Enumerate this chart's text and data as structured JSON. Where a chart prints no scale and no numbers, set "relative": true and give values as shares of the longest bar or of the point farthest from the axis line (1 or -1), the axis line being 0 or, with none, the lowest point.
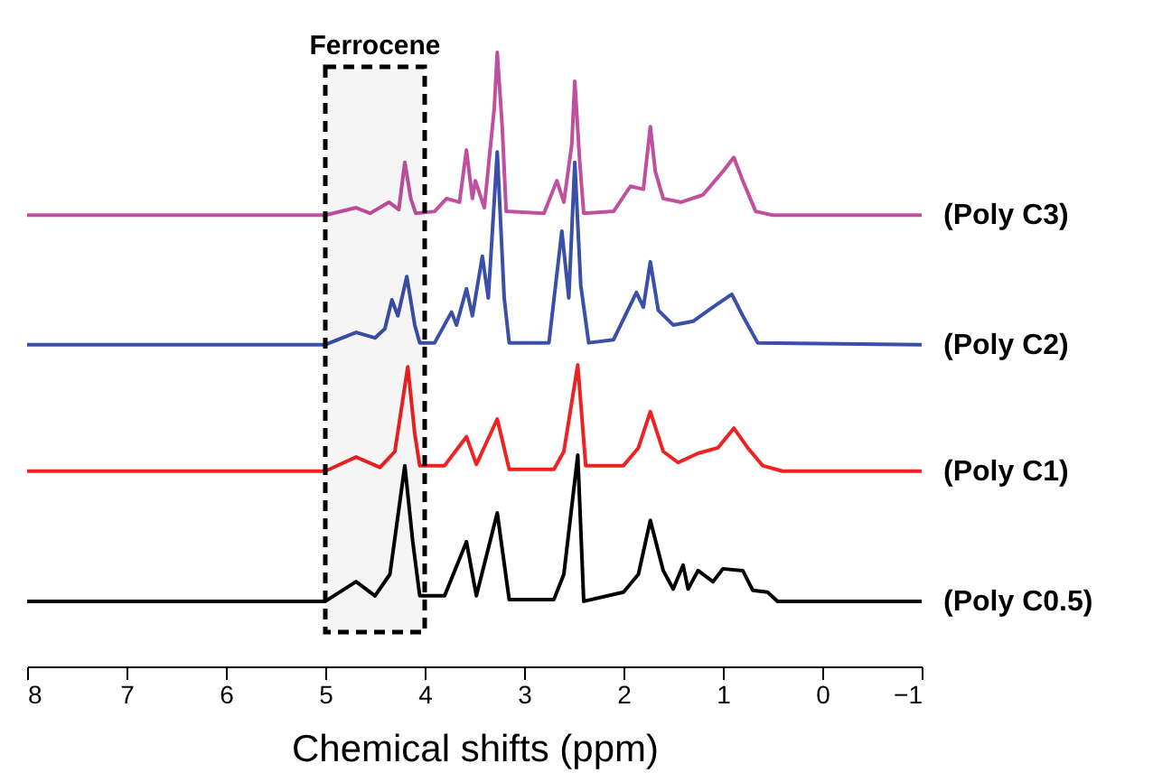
{
  "chart_data": {
    "type": "line",
    "relative": true,
    "xlabel": "Chemical shifts (ppm)",
    "xlim": [
      8,
      -1
    ],
    "xticks": [
      8,
      7,
      6,
      5,
      4,
      3,
      2,
      1,
      0,
      -1
    ],
    "grid": false,
    "line_style": "solid",
    "marker": "none",
    "bands": [
      {
        "axis": "x",
        "from": 5,
        "to": 4,
        "label": "Ferrocene",
        "color": "#000000"
      }
    ],
    "series": [
      {
        "name": "(Poly C3)",
        "color": "#c0509f",
        "x": [
          8,
          5,
          4.69,
          4.55,
          4.36,
          4.26,
          4.2,
          4.14,
          4.09,
          3.9,
          3.78,
          3.65,
          3.58,
          3.52,
          3.49,
          3.4,
          3.3,
          3.27,
          3.22,
          3.18,
          2.8,
          2.67,
          2.6,
          2.52,
          2.49,
          2.44,
          2.4,
          2.1,
          1.93,
          1.8,
          1.73,
          1.68,
          1.6,
          1.42,
          1.2,
          1.0,
          0.89,
          0.8,
          0.67,
          0.5,
          -1
        ],
        "values": [
          0.735,
          0.735,
          0.747,
          0.738,
          0.756,
          0.744,
          0.821,
          0.762,
          0.738,
          0.741,
          0.762,
          0.756,
          0.841,
          0.762,
          0.791,
          0.747,
          0.909,
          1.0,
          0.879,
          0.741,
          0.738,
          0.791,
          0.756,
          0.85,
          0.953,
          0.821,
          0.738,
          0.741,
          0.782,
          0.777,
          0.879,
          0.806,
          0.762,
          0.756,
          0.768,
          0.806,
          0.829,
          0.791,
          0.741,
          0.735,
          0.735
        ]
      },
      {
        "name": "(Poly C2)",
        "color": "#3a4fa8",
        "x": [
          8,
          5,
          4.69,
          4.5,
          4.4,
          4.33,
          4.27,
          4.18,
          4.1,
          4.05,
          3.9,
          3.73,
          3.68,
          3.58,
          3.52,
          3.42,
          3.36,
          3.27,
          3.2,
          3.15,
          2.75,
          2.62,
          2.55,
          2.49,
          2.43,
          2.35,
          2.1,
          1.87,
          1.8,
          1.73,
          1.65,
          1.5,
          1.3,
          1.1,
          0.91,
          0.8,
          0.65,
          -1
        ],
        "values": [
          0.524,
          0.524,
          0.544,
          0.535,
          0.55,
          0.597,
          0.571,
          0.635,
          0.556,
          0.527,
          0.527,
          0.577,
          0.556,
          0.615,
          0.571,
          0.668,
          0.6,
          0.838,
          0.6,
          0.527,
          0.527,
          0.709,
          0.6,
          0.821,
          0.621,
          0.527,
          0.532,
          0.609,
          0.585,
          0.659,
          0.58,
          0.556,
          0.562,
          0.585,
          0.606,
          0.571,
          0.527,
          0.524
        ]
      },
      {
        "name": "(Poly C1)",
        "color": "#ee2222",
        "x": [
          8,
          5,
          4.69,
          4.45,
          4.3,
          4.17,
          4.1,
          4.05,
          3.8,
          3.58,
          3.48,
          3.27,
          3.15,
          2.7,
          2.6,
          2.46,
          2.38,
          2.0,
          1.85,
          1.73,
          1.6,
          1.45,
          1.25,
          1.05,
          0.89,
          0.75,
          0.6,
          0.4,
          -1
        ],
        "values": [
          0.318,
          0.318,
          0.341,
          0.324,
          0.35,
          0.488,
          0.379,
          0.327,
          0.327,
          0.374,
          0.329,
          0.403,
          0.321,
          0.321,
          0.35,
          0.491,
          0.327,
          0.327,
          0.356,
          0.415,
          0.35,
          0.332,
          0.347,
          0.356,
          0.388,
          0.356,
          0.327,
          0.318,
          0.318
        ]
      },
      {
        "name": "(Poly C0.5)",
        "color": "#000000",
        "x": [
          8,
          5,
          4.69,
          4.5,
          4.35,
          4.2,
          4.12,
          4.05,
          3.8,
          3.58,
          3.48,
          3.27,
          3.15,
          2.7,
          2.6,
          2.46,
          2.4,
          2.0,
          1.85,
          1.73,
          1.6,
          1.5,
          1.4,
          1.35,
          1.25,
          1.1,
          1.0,
          0.8,
          0.7,
          0.55,
          0.45,
          -1
        ],
        "values": [
          0.106,
          0.106,
          0.138,
          0.115,
          0.15,
          0.327,
          0.203,
          0.115,
          0.115,
          0.203,
          0.115,
          0.25,
          0.109,
          0.109,
          0.15,
          0.344,
          0.106,
          0.121,
          0.15,
          0.238,
          0.156,
          0.126,
          0.165,
          0.126,
          0.156,
          0.138,
          0.159,
          0.156,
          0.124,
          0.121,
          0.106,
          0.106
        ]
      }
    ]
  }
}
